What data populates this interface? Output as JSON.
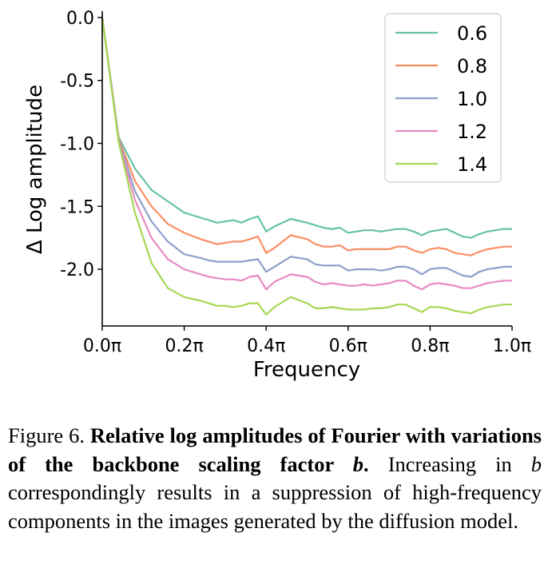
{
  "chart_data": {
    "type": "line",
    "xlabel": "Frequency",
    "ylabel": "Δ Log amplitude",
    "xlim": [
      0.0,
      1.0
    ],
    "ylim": [
      -2.45,
      0.05
    ],
    "x_ticks": [
      0.0,
      0.2,
      0.4,
      0.6,
      0.8,
      1.0
    ],
    "x_tick_labels": [
      "0.0π",
      "0.2π",
      "0.4π",
      "0.6π",
      "0.8π",
      "1.0π"
    ],
    "y_ticks": [
      0.0,
      -0.5,
      -1.0,
      -1.5,
      -2.0
    ],
    "y_tick_labels": [
      "0.0",
      "-0.5",
      "-1.0",
      "-1.5",
      "-2.0"
    ],
    "grid": false,
    "legend_position": "top-right",
    "x": [
      0.0,
      0.04,
      0.08,
      0.12,
      0.16,
      0.2,
      0.24,
      0.26,
      0.28,
      0.3,
      0.32,
      0.34,
      0.36,
      0.38,
      0.4,
      0.42,
      0.46,
      0.5,
      0.52,
      0.54,
      0.56,
      0.58,
      0.6,
      0.62,
      0.64,
      0.66,
      0.68,
      0.7,
      0.72,
      0.74,
      0.76,
      0.78,
      0.8,
      0.82,
      0.84,
      0.86,
      0.88,
      0.9,
      0.92,
      0.94,
      0.96,
      0.98,
      1.0
    ],
    "series": [
      {
        "name": "0.6",
        "color": "#66c2a5",
        "values": [
          0.0,
          -0.95,
          -1.2,
          -1.37,
          -1.46,
          -1.55,
          -1.59,
          -1.61,
          -1.63,
          -1.62,
          -1.61,
          -1.63,
          -1.6,
          -1.58,
          -1.7,
          -1.66,
          -1.6,
          -1.63,
          -1.65,
          -1.67,
          -1.68,
          -1.67,
          -1.71,
          -1.7,
          -1.69,
          -1.69,
          -1.7,
          -1.69,
          -1.68,
          -1.68,
          -1.7,
          -1.73,
          -1.7,
          -1.69,
          -1.68,
          -1.71,
          -1.74,
          -1.75,
          -1.72,
          -1.7,
          -1.69,
          -1.68,
          -1.68
        ]
      },
      {
        "name": "0.8",
        "color": "#fc8d62",
        "values": [
          0.0,
          -0.96,
          -1.3,
          -1.5,
          -1.64,
          -1.71,
          -1.76,
          -1.78,
          -1.8,
          -1.79,
          -1.78,
          -1.78,
          -1.76,
          -1.74,
          -1.87,
          -1.83,
          -1.73,
          -1.76,
          -1.8,
          -1.82,
          -1.82,
          -1.81,
          -1.85,
          -1.84,
          -1.84,
          -1.84,
          -1.84,
          -1.84,
          -1.82,
          -1.82,
          -1.85,
          -1.87,
          -1.84,
          -1.83,
          -1.84,
          -1.87,
          -1.88,
          -1.89,
          -1.86,
          -1.84,
          -1.83,
          -1.82,
          -1.82
        ]
      },
      {
        "name": "1.0",
        "color": "#8da0cb",
        "values": [
          0.0,
          -0.97,
          -1.38,
          -1.62,
          -1.78,
          -1.88,
          -1.91,
          -1.93,
          -1.94,
          -1.94,
          -1.94,
          -1.94,
          -1.93,
          -1.92,
          -2.02,
          -1.98,
          -1.9,
          -1.92,
          -1.96,
          -1.97,
          -1.97,
          -1.97,
          -2.01,
          -2.0,
          -2.0,
          -2.0,
          -2.01,
          -2.0,
          -1.98,
          -1.98,
          -2.0,
          -2.04,
          -2.0,
          -1.99,
          -1.99,
          -2.02,
          -2.05,
          -2.06,
          -2.02,
          -2.0,
          -1.99,
          -1.98,
          -1.98
        ]
      },
      {
        "name": "1.2",
        "color": "#e78ac3",
        "values": [
          0.0,
          -0.98,
          -1.45,
          -1.75,
          -1.92,
          -2.0,
          -2.04,
          -2.06,
          -2.07,
          -2.08,
          -2.08,
          -2.09,
          -2.06,
          -2.05,
          -2.16,
          -2.1,
          -2.04,
          -2.06,
          -2.1,
          -2.12,
          -2.11,
          -2.12,
          -2.13,
          -2.13,
          -2.12,
          -2.13,
          -2.12,
          -2.11,
          -2.09,
          -2.09,
          -2.13,
          -2.16,
          -2.12,
          -2.11,
          -2.12,
          -2.13,
          -2.15,
          -2.15,
          -2.13,
          -2.11,
          -2.1,
          -2.09,
          -2.09
        ]
      },
      {
        "name": "1.4",
        "color": "#a6d854",
        "values": [
          0.0,
          -0.99,
          -1.55,
          -1.95,
          -2.15,
          -2.22,
          -2.25,
          -2.27,
          -2.29,
          -2.29,
          -2.3,
          -2.29,
          -2.27,
          -2.27,
          -2.36,
          -2.3,
          -2.22,
          -2.27,
          -2.31,
          -2.31,
          -2.3,
          -2.31,
          -2.32,
          -2.32,
          -2.32,
          -2.31,
          -2.31,
          -2.3,
          -2.28,
          -2.28,
          -2.31,
          -2.34,
          -2.3,
          -2.3,
          -2.31,
          -2.33,
          -2.34,
          -2.35,
          -2.32,
          -2.3,
          -2.29,
          -2.28,
          -2.28
        ]
      }
    ]
  },
  "caption": {
    "label": "Figure 6.",
    "bold_part_1": "Relative log amplitudes of Fourier with variations of the backbone scaling factor",
    "bold_variable": "b",
    "bold_period": ".",
    "rest_part_1": "Increasing in",
    "rest_variable": "b",
    "rest_part_2": "correspondingly results in a suppression of high-frequency components in the images generated by the diffusion model."
  }
}
